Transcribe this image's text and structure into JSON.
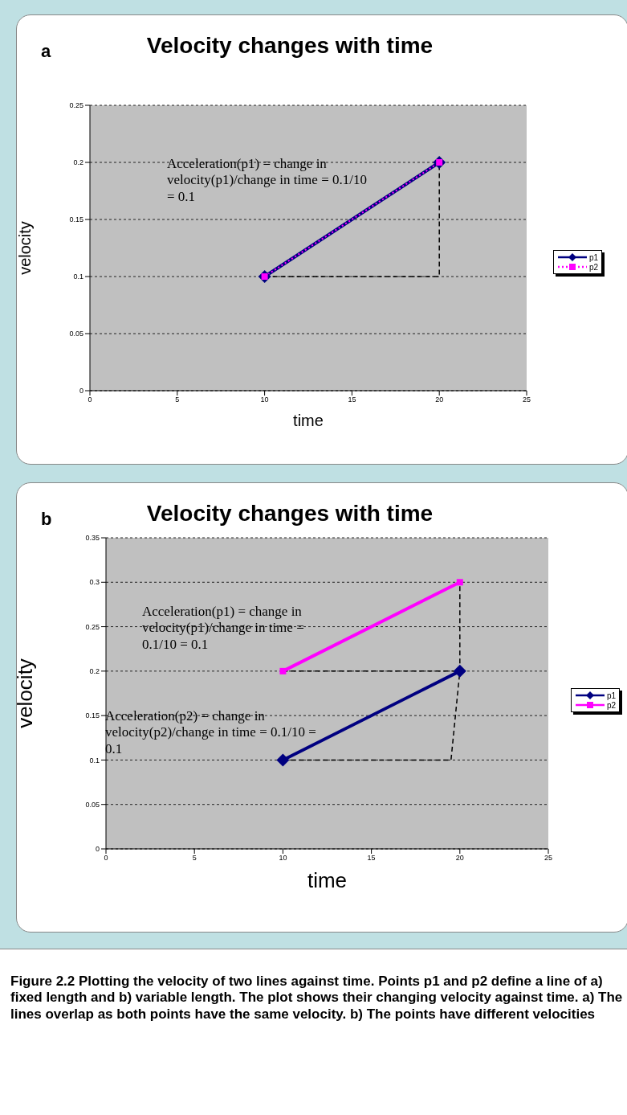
{
  "chart_data": [
    {
      "type": "line",
      "title": "Velocity changes with time",
      "xlabel": "time",
      "ylabel": "velocity",
      "xlim": [
        0,
        25
      ],
      "xticks": [
        0,
        5,
        10,
        15,
        20,
        25
      ],
      "ylim": [
        0,
        0.25
      ],
      "yticks": [
        0,
        0.05,
        0.1,
        0.15,
        0.2,
        0.25
      ],
      "grid": "y",
      "legend": "right",
      "annotations": [
        "a",
        "Acceleration(p1) = change in velocity(p1)/change in time = 0.1/10 = 0.1"
      ],
      "series": [
        {
          "x": [
            10,
            20,
            20
          ],
          "values": [
            0.1,
            0.1,
            0.2
          ],
          "color": "#000000",
          "line_style": "dashed",
          "marker": "none"
        },
        {
          "name": "p1",
          "x": [
            10,
            20
          ],
          "values": [
            0.1,
            0.2
          ],
          "color": "#000080",
          "marker": "diamond",
          "line_style": "solid"
        },
        {
          "name": "p2",
          "x": [
            10,
            20
          ],
          "values": [
            0.1,
            0.2
          ],
          "color": "#ff00ff",
          "marker": "square",
          "line_style": "dotted"
        }
      ]
    },
    {
      "type": "line",
      "title": "Velocity changes with time",
      "xlabel": "time",
      "ylabel": "velocity",
      "xlim": [
        0,
        25
      ],
      "xticks": [
        0,
        5,
        10,
        15,
        20,
        25
      ],
      "ylim": [
        0,
        0.35
      ],
      "yticks": [
        0,
        0.05,
        0.1,
        0.15,
        0.2,
        0.25,
        0.3,
        0.35
      ],
      "grid": "y",
      "legend": "right",
      "annotations": [
        "b",
        "Acceleration(p1) = change in velocity(p1)/change in time = 0.1/10 = 0.1",
        "Acceleration(p2) = change in velocity(p2)/change in time = 0.1/10 = 0.1",
        "Figure 2.2 Plotting the velocity of two lines against time. Points p1 and p2 define a line of a) fixed length and b) variable length.  The plot shows their changing velocity against time. a) The lines overlap as both points have the same velocity. b) The points have different velocities"
      ],
      "series": [
        {
          "x": [
            10,
            19.5,
            20
          ],
          "values": [
            0.1,
            0.1,
            0.2
          ],
          "color": "#000000",
          "line_style": "dashed",
          "marker": "none"
        },
        {
          "x": [
            10,
            20,
            20
          ],
          "values": [
            0.2,
            0.2,
            0.3
          ],
          "color": "#000000",
          "line_style": "dashed",
          "marker": "none"
        },
        {
          "name": "p1",
          "x": [
            10,
            20
          ],
          "values": [
            0.1,
            0.2
          ],
          "color": "#000080",
          "marker": "diamond",
          "line_style": "solid"
        },
        {
          "name": "p2",
          "x": [
            10,
            20
          ],
          "values": [
            0.2,
            0.3
          ],
          "color": "#ff00ff",
          "marker": "square",
          "line_style": "solid"
        }
      ]
    }
  ]
}
